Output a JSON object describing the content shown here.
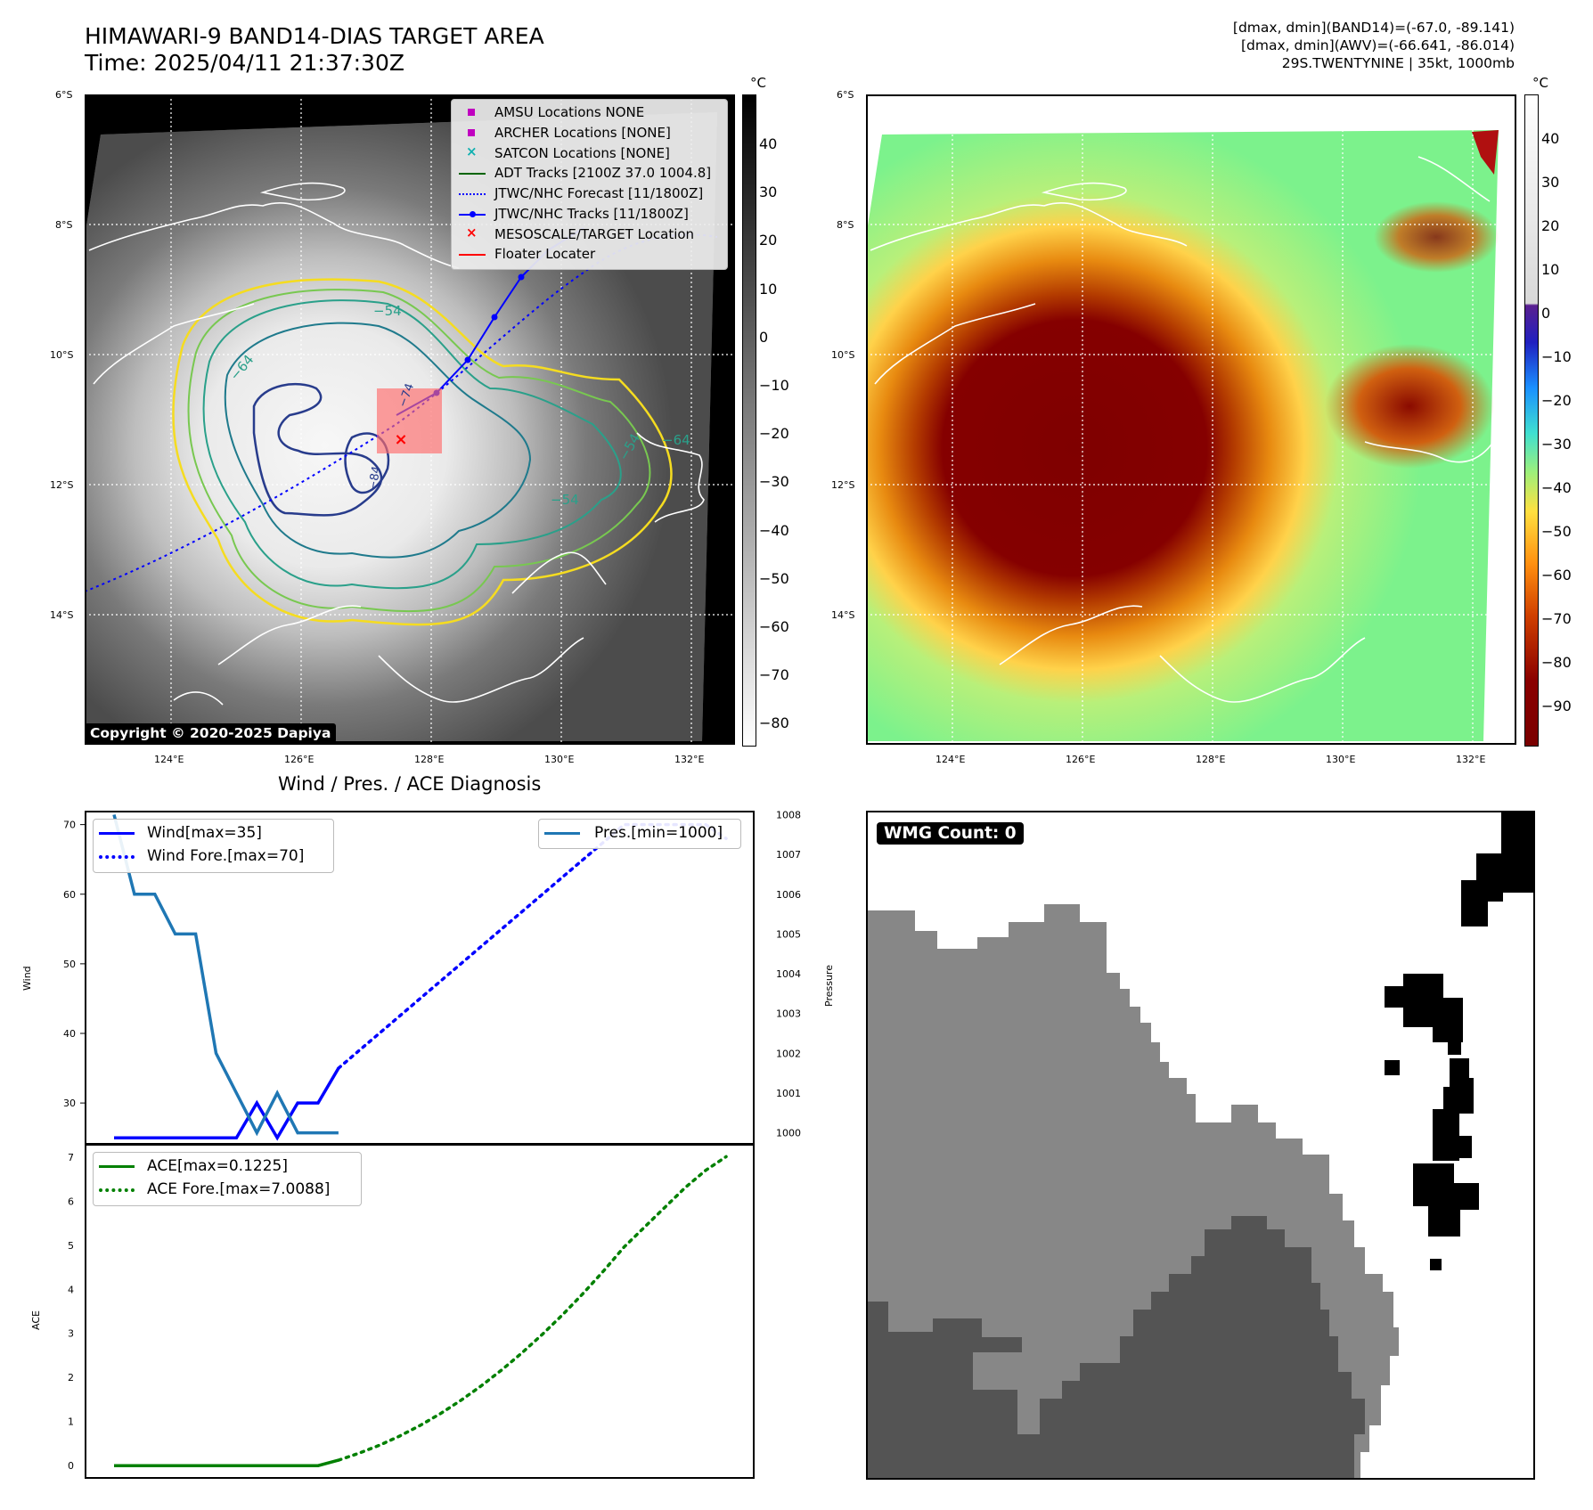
{
  "header": {
    "title_line1": "HIMAWARI-9 BAND14-DIAS TARGET AREA",
    "title_line2": "Time: 2025/04/11 21:37:30Z",
    "info_line1": "[dmax, dmin](BAND14)=(-67.0, -89.141)",
    "info_line2": "[dmax, dmin](AWV)=(-66.641, -86.014)",
    "info_line3": "29S.TWENTYNINE | 35kt, 1000mb"
  },
  "map_axes": {
    "lat_labels": [
      "6°S",
      "8°S",
      "10°S",
      "12°S",
      "14°S"
    ],
    "lon_labels": [
      "124°E",
      "126°E",
      "128°E",
      "130°E",
      "132°E"
    ]
  },
  "ir_panel": {
    "copyright": "Copyright © 2020-2025 Dapiya",
    "colorbar_unit": "°C",
    "colorbar_ticks": [
      "40",
      "30",
      "20",
      "10",
      "0",
      "−10",
      "−20",
      "−30",
      "−40",
      "−50",
      "−60",
      "−70",
      "−80"
    ],
    "contour_labels": [
      "−54",
      "−64",
      "−54",
      "−64",
      "−54",
      "−74",
      "−84"
    ],
    "legend": [
      {
        "label": "AMSU Locations NONE",
        "marker": "square",
        "color": "#c000c0"
      },
      {
        "label": "ARCHER Locations [NONE]",
        "marker": "square",
        "color": "#c000c0"
      },
      {
        "label": "SATCON Locations [NONE]",
        "marker": "x",
        "color": "#10b0b0"
      },
      {
        "label": "ADT Tracks [2100Z 37.0 1004.8]",
        "marker": "line",
        "color": "#006400"
      },
      {
        "label": "JTWC/NHC Forecast [11/1800Z]",
        "marker": "dotted",
        "color": "#0000ff"
      },
      {
        "label": "JTWC/NHC Tracks [11/1800Z]",
        "marker": "line-dot",
        "color": "#0000ff"
      },
      {
        "label": "MESOSCALE/TARGET Location",
        "marker": "x",
        "color": "#ff0000"
      },
      {
        "label": "Floater Locater",
        "marker": "line",
        "color": "#ff0000"
      }
    ]
  },
  "awv_panel": {
    "colorbar_unit": "°C",
    "colorbar_ticks": [
      "40",
      "30",
      "20",
      "10",
      "0",
      "−10",
      "−20",
      "−30",
      "−40",
      "−50",
      "−60",
      "−70",
      "−80",
      "−90"
    ]
  },
  "wmg_panel": {
    "badge": "WMG Count: 0",
    "colors": {
      "white": "#ffffff",
      "black": "#000000",
      "light": "#878787",
      "dark": "#545454"
    }
  },
  "chart_data": [
    {
      "type": "line",
      "title": "Wind / Pres. / ACE Diagnosis",
      "ylabel": "Wind",
      "y2label": "Pressure",
      "ylim": [
        24,
        72
      ],
      "y2lim": [
        999.7,
        1008.1
      ],
      "yticks": [
        "70",
        "60",
        "50",
        "40",
        "30"
      ],
      "y2ticks": [
        "1008",
        "1007",
        "1006",
        "1005",
        "1004",
        "1003",
        "1002",
        "1001",
        "1000"
      ],
      "x": [
        0,
        1,
        2,
        3,
        4,
        5,
        6,
        7,
        8,
        9,
        10,
        11,
        12,
        13,
        14,
        15,
        16,
        17,
        18,
        19,
        20,
        21,
        22,
        23,
        24,
        25,
        26,
        27,
        28,
        29,
        30
      ],
      "series": [
        {
          "name": "Wind[max=35]",
          "axis": "left",
          "style": "solid",
          "color": "#0000ff",
          "x": [
            0,
            1,
            2,
            3,
            4,
            5,
            6,
            7,
            8,
            9,
            10,
            11
          ],
          "values": [
            25,
            25,
            25,
            25,
            25,
            25,
            25,
            30,
            25,
            30,
            30,
            35
          ]
        },
        {
          "name": "Wind Fore.[max=70]",
          "axis": "left",
          "style": "dotted",
          "color": "#0000ff",
          "x": [
            11,
            12,
            13,
            14,
            15,
            16,
            17,
            18,
            19,
            20,
            21,
            22,
            23,
            24,
            25,
            26,
            27,
            28,
            29,
            30
          ],
          "values": [
            35,
            37.5,
            40,
            42.5,
            45,
            47.5,
            50,
            52.5,
            55,
            57.5,
            60,
            62.5,
            65,
            67.5,
            70,
            70,
            70,
            70,
            70,
            68
          ]
        },
        {
          "name": "Pres.[min=1000]",
          "axis": "right",
          "style": "solid",
          "color": "#1f77b4",
          "x": [
            0,
            1,
            2,
            3,
            4,
            5,
            6,
            7,
            8,
            9,
            10,
            11
          ],
          "values": [
            1008,
            1006,
            1006,
            1005,
            1005,
            1002,
            1001,
            1000,
            1001,
            1000,
            1000,
            1000
          ]
        }
      ]
    },
    {
      "type": "line",
      "ylabel": "ACE",
      "ylim": [
        -0.3,
        7.3
      ],
      "yticks": [
        "7",
        "6",
        "5",
        "4",
        "3",
        "2",
        "1",
        "0"
      ],
      "series": [
        {
          "name": "ACE[max=0.1225]",
          "style": "solid",
          "color": "#008000",
          "x": [
            0,
            1,
            2,
            3,
            4,
            5,
            6,
            7,
            8,
            9,
            10,
            11
          ],
          "values": [
            0,
            0,
            0,
            0,
            0,
            0,
            0,
            0,
            0,
            0,
            0,
            0.1225
          ]
        },
        {
          "name": "ACE Fore.[max=7.0088]",
          "style": "dotted",
          "color": "#008000",
          "x": [
            11,
            12,
            13,
            14,
            15,
            16,
            17,
            18,
            19,
            20,
            21,
            22,
            23,
            24,
            25,
            26,
            27,
            28,
            29,
            30
          ],
          "values": [
            0.1225,
            0.28,
            0.46,
            0.67,
            0.91,
            1.18,
            1.48,
            1.81,
            2.17,
            2.56,
            2.98,
            3.43,
            3.91,
            4.42,
            4.96,
            5.41,
            5.86,
            6.31,
            6.7,
            7.0088
          ]
        }
      ]
    }
  ]
}
